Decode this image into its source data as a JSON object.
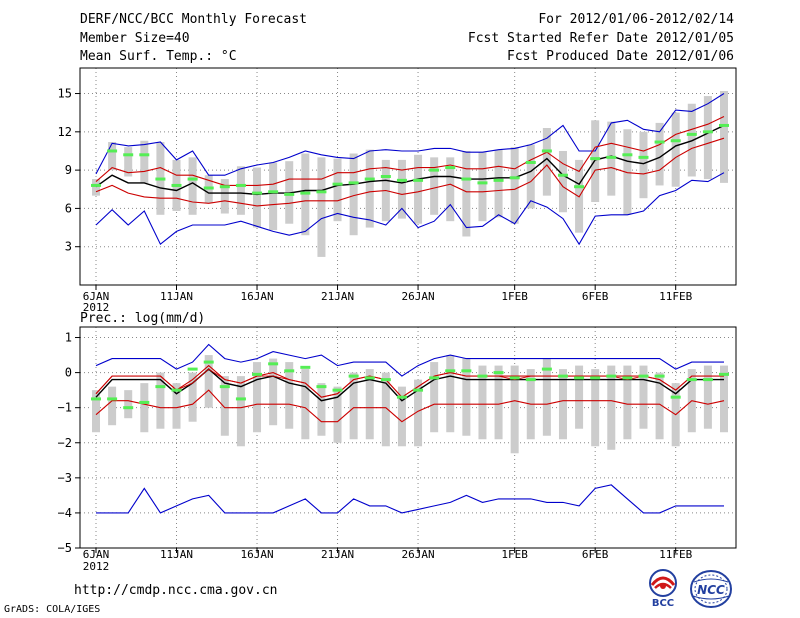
{
  "header": {
    "title": "DERF/NCC/BCC Monthly Forecast",
    "member_size": "Member Size=40",
    "variable": "Mean Surf. Temp.: °C",
    "period": "For 2012/01/06-2012/02/14",
    "fcst_started": "Fcst Started Refer Date 2012/01/05",
    "fcst_produced": "Fcst Produced Date 2012/01/06"
  },
  "footer": {
    "url": "http://cmdp.ncc.cma.gov.cn",
    "credit": "GrADS: COLA/IGES",
    "logo1": "BCC",
    "logo2": "NCC"
  },
  "colors": {
    "envelope": "#0000cc",
    "spread": "#cc0000",
    "mean": "#000000",
    "member": "#55ee55",
    "bar": "#cccccc",
    "grid": "#888888"
  },
  "chart_data": [
    {
      "name": "temperature",
      "type": "line",
      "title": "Mean Surf. Temp.: °C",
      "x_day_range": [
        1,
        40
      ],
      "ylim": [
        0,
        17
      ],
      "yticks": [
        3,
        6,
        9,
        12,
        15
      ],
      "ytick_labels": [
        "3",
        "6",
        "9",
        "12",
        "15"
      ],
      "xticks": [
        {
          "day": 1,
          "label": "6JAN",
          "sub": "2012"
        },
        {
          "day": 6,
          "label": "11JAN"
        },
        {
          "day": 11,
          "label": "16JAN"
        },
        {
          "day": 16,
          "label": "21JAN"
        },
        {
          "day": 21,
          "label": "26JAN"
        },
        {
          "day": 27,
          "label": "1FEB"
        },
        {
          "day": 32,
          "label": "6FEB"
        },
        {
          "day": 37,
          "label": "11FEB"
        }
      ],
      "grid": true,
      "series": [
        {
          "name": "max",
          "style": "envelope",
          "values": [
            8.7,
            11.1,
            10.9,
            11.0,
            11.2,
            9.8,
            10.5,
            8.6,
            8.6,
            9.1,
            9.4,
            9.6,
            10.0,
            10.5,
            10.2,
            10.0,
            9.9,
            10.5,
            10.6,
            10.5,
            10.5,
            10.7,
            10.7,
            10.4,
            10.4,
            10.6,
            10.7,
            11.0,
            11.5,
            12.5,
            10.5,
            10.5,
            12.7,
            12.9,
            12.2,
            12.0,
            13.7,
            13.6,
            14.2,
            15.0
          ]
        },
        {
          "name": "upper",
          "style": "spread",
          "values": [
            8.1,
            9.2,
            8.8,
            8.9,
            9.2,
            8.6,
            8.6,
            8.2,
            7.8,
            7.8,
            7.8,
            7.9,
            8.3,
            8.3,
            8.3,
            8.8,
            8.8,
            9.1,
            9.2,
            9.0,
            9.2,
            9.2,
            9.4,
            9.1,
            9.1,
            9.3,
            9.1,
            9.8,
            10.4,
            9.5,
            8.9,
            10.8,
            11.1,
            10.8,
            10.5,
            11.0,
            11.8,
            12.2,
            12.6,
            13.2
          ]
        },
        {
          "name": "mean",
          "style": "mean",
          "values": [
            7.7,
            8.6,
            8.0,
            8.0,
            7.6,
            7.4,
            8.0,
            7.2,
            7.2,
            7.2,
            7.1,
            7.2,
            7.2,
            7.4,
            7.4,
            7.8,
            7.9,
            8.1,
            8.2,
            8.0,
            8.3,
            8.5,
            8.5,
            8.3,
            8.3,
            8.4,
            8.4,
            8.9,
            9.9,
            8.6,
            7.9,
            9.8,
            10.1,
            9.7,
            9.5,
            10.0,
            10.9,
            11.3,
            11.9,
            12.5
          ]
        },
        {
          "name": "lower",
          "style": "spread",
          "values": [
            7.3,
            7.8,
            7.2,
            6.9,
            6.8,
            6.8,
            6.5,
            6.4,
            6.6,
            6.4,
            6.2,
            6.3,
            6.4,
            6.6,
            6.6,
            6.6,
            7.0,
            7.3,
            7.4,
            7.1,
            7.3,
            7.6,
            7.9,
            7.3,
            7.3,
            7.4,
            7.5,
            8.1,
            9.4,
            7.7,
            6.9,
            9.0,
            9.2,
            8.8,
            8.7,
            9.0,
            10.0,
            10.7,
            11.1,
            11.5
          ]
        },
        {
          "name": "min",
          "style": "envelope",
          "values": [
            4.7,
            5.9,
            4.7,
            5.8,
            3.2,
            4.2,
            4.7,
            4.7,
            4.7,
            5.0,
            4.6,
            4.2,
            3.9,
            4.2,
            5.2,
            5.6,
            5.3,
            5.1,
            4.7,
            6.0,
            4.5,
            5.0,
            6.3,
            4.5,
            4.6,
            5.5,
            4.8,
            6.6,
            6.1,
            5.2,
            3.2,
            5.4,
            5.5,
            5.5,
            5.8,
            7.0,
            7.4,
            8.2,
            8.1,
            8.8
          ]
        }
      ],
      "member_marks": [
        7.8,
        10.5,
        10.2,
        10.2,
        8.3,
        7.8,
        8.3,
        7.6,
        7.7,
        7.8,
        7.2,
        7.3,
        7.1,
        7.2,
        7.3,
        7.9,
        8.0,
        8.3,
        8.5,
        8.2,
        8.2,
        9.0,
        9.2,
        8.3,
        8.0,
        8.2,
        8.4,
        9.6,
        10.5,
        8.6,
        7.7,
        9.9,
        10.0,
        10.2,
        10.0,
        11.2,
        11.3,
        11.8,
        12.0,
        12.5
      ],
      "bar_ranges": [
        [
          7.0,
          8.3
        ],
        [
          9.0,
          11.2
        ],
        [
          8.5,
          10.8
        ],
        [
          8.0,
          11.3
        ],
        [
          5.5,
          11.2
        ],
        [
          5.8,
          9.8
        ],
        [
          5.5,
          10.0
        ],
        [
          6.4,
          8.6
        ],
        [
          5.6,
          8.3
        ],
        [
          5.5,
          9.3
        ],
        [
          4.5,
          9.2
        ],
        [
          4.3,
          9.6
        ],
        [
          4.8,
          9.7
        ],
        [
          3.9,
          10.3
        ],
        [
          2.2,
          10.0
        ],
        [
          5.0,
          9.9
        ],
        [
          3.9,
          10.3
        ],
        [
          4.5,
          10.6
        ],
        [
          5.0,
          9.8
        ],
        [
          5.2,
          9.8
        ],
        [
          4.8,
          10.2
        ],
        [
          5.5,
          10.0
        ],
        [
          5.0,
          10.0
        ],
        [
          3.8,
          10.5
        ],
        [
          5.0,
          10.4
        ],
        [
          5.3,
          10.6
        ],
        [
          4.8,
          10.8
        ],
        [
          6.0,
          11.0
        ],
        [
          7.0,
          12.3
        ],
        [
          5.7,
          10.5
        ],
        [
          4.1,
          9.8
        ],
        [
          6.5,
          12.9
        ],
        [
          7.0,
          12.8
        ],
        [
          5.5,
          12.2
        ],
        [
          6.8,
          12.0
        ],
        [
          7.8,
          12.7
        ],
        [
          7.7,
          13.5
        ],
        [
          8.5,
          14.2
        ],
        [
          8.3,
          14.8
        ],
        [
          8.0,
          15.2
        ]
      ]
    },
    {
      "name": "precipitation",
      "type": "line",
      "title": "Prec.: log(mm/d)",
      "x_day_range": [
        1,
        40
      ],
      "ylim": [
        -5,
        1.3
      ],
      "yticks": [
        -5,
        -4,
        -3,
        -2,
        -1,
        0,
        1
      ],
      "ytick_labels": [
        "−5",
        "−4",
        "−3",
        "−2",
        "−1",
        "0",
        "1"
      ],
      "xticks": [
        {
          "day": 1,
          "label": "6JAN",
          "sub": "2012"
        },
        {
          "day": 6,
          "label": "11JAN"
        },
        {
          "day": 11,
          "label": "16JAN"
        },
        {
          "day": 16,
          "label": "21JAN"
        },
        {
          "day": 21,
          "label": "26JAN"
        },
        {
          "day": 27,
          "label": "1FEB"
        },
        {
          "day": 32,
          "label": "6FEB"
        },
        {
          "day": 37,
          "label": "11FEB"
        }
      ],
      "grid": true,
      "series": [
        {
          "name": "max",
          "style": "envelope",
          "values": [
            0.2,
            0.4,
            0.4,
            0.4,
            0.4,
            0.1,
            0.3,
            0.8,
            0.4,
            0.3,
            0.4,
            0.6,
            0.5,
            0.4,
            0.5,
            0.2,
            0.3,
            0.3,
            0.3,
            -0.1,
            0.2,
            0.4,
            0.5,
            0.4,
            0.4,
            0.4,
            0.4,
            0.4,
            0.4,
            0.4,
            0.4,
            0.4,
            0.4,
            0.4,
            0.4,
            0.4,
            0.1,
            0.3,
            0.3,
            0.3
          ]
        },
        {
          "name": "upper",
          "style": "spread",
          "values": [
            -0.6,
            -0.1,
            -0.1,
            -0.1,
            -0.1,
            -0.5,
            -0.2,
            0.2,
            -0.2,
            -0.3,
            -0.1,
            0.0,
            -0.2,
            -0.3,
            -0.7,
            -0.6,
            -0.2,
            -0.1,
            -0.2,
            -0.7,
            -0.4,
            -0.1,
            0.0,
            -0.1,
            -0.1,
            -0.1,
            -0.1,
            -0.1,
            -0.1,
            -0.1,
            -0.1,
            -0.1,
            -0.1,
            -0.1,
            -0.1,
            -0.2,
            -0.5,
            -0.1,
            -0.1,
            -0.1
          ]
        },
        {
          "name": "mean",
          "style": "mean",
          "values": [
            -0.7,
            -0.2,
            -0.2,
            -0.2,
            -0.2,
            -0.6,
            -0.3,
            0.1,
            -0.3,
            -0.4,
            -0.2,
            -0.1,
            -0.3,
            -0.4,
            -0.8,
            -0.7,
            -0.3,
            -0.2,
            -0.3,
            -0.8,
            -0.5,
            -0.2,
            -0.1,
            -0.2,
            -0.2,
            -0.2,
            -0.2,
            -0.2,
            -0.2,
            -0.2,
            -0.2,
            -0.2,
            -0.2,
            -0.2,
            -0.2,
            -0.3,
            -0.6,
            -0.2,
            -0.2,
            -0.2
          ]
        },
        {
          "name": "lower",
          "style": "spread",
          "values": [
            -1.2,
            -0.8,
            -0.8,
            -0.9,
            -1.0,
            -1.0,
            -0.9,
            -0.5,
            -1.0,
            -1.0,
            -0.9,
            -0.9,
            -0.9,
            -1.0,
            -1.4,
            -1.4,
            -1.0,
            -1.0,
            -1.0,
            -1.4,
            -1.1,
            -0.9,
            -0.9,
            -0.9,
            -0.9,
            -0.9,
            -0.8,
            -0.9,
            -0.9,
            -0.8,
            -0.8,
            -0.8,
            -0.8,
            -0.9,
            -0.9,
            -0.9,
            -1.2,
            -0.8,
            -0.9,
            -0.8
          ]
        },
        {
          "name": "min",
          "style": "envelope",
          "values": [
            -4.0,
            -4.0,
            -4.0,
            -3.3,
            -4.0,
            -3.8,
            -3.6,
            -3.5,
            -4.0,
            -4.0,
            -4.0,
            -4.0,
            -3.8,
            -3.6,
            -4.0,
            -4.0,
            -3.6,
            -3.8,
            -3.8,
            -4.0,
            -3.9,
            -3.8,
            -3.7,
            -3.5,
            -3.7,
            -3.6,
            -3.6,
            -3.6,
            -3.7,
            -3.7,
            -3.8,
            -3.3,
            -3.2,
            -3.6,
            -4.0,
            -4.0,
            -3.8,
            -3.8,
            -3.8,
            -3.8
          ]
        },
        {
          "name": "secondary",
          "style": "mean_thin",
          "values": [
            -0.6,
            -0.1,
            -0.1,
            -0.1,
            -0.1,
            -0.5,
            -0.3,
            0.1,
            -0.2,
            -0.3,
            -0.1,
            -0.1,
            -0.2,
            -0.3,
            -0.7,
            -0.6,
            -0.2,
            -0.1,
            -0.2,
            -0.7,
            -0.4,
            -0.1,
            0.0,
            -0.1,
            -0.1,
            -0.1,
            -0.2,
            -0.1,
            -0.1,
            -0.1,
            -0.1,
            -0.1,
            -0.1,
            -0.2,
            -0.1,
            -0.2,
            -0.5,
            -0.1,
            -0.1,
            -0.1
          ]
        }
      ],
      "member_marks": [
        -0.75,
        -0.75,
        -1.0,
        -0.85,
        -0.4,
        -0.5,
        0.1,
        0.3,
        -0.4,
        -0.75,
        -0.05,
        0.25,
        0.05,
        0.15,
        -0.4,
        -0.5,
        -0.1,
        -0.15,
        -0.2,
        -0.7,
        -0.5,
        -0.15,
        0.05,
        0.05,
        -0.1,
        0.0,
        -0.15,
        -0.2,
        0.1,
        -0.1,
        -0.15,
        -0.15,
        -0.1,
        -0.15,
        -0.1,
        -0.1,
        -0.7,
        -0.2,
        -0.2,
        -0.05
      ],
      "bar_ranges": [
        [
          -1.7,
          -0.5
        ],
        [
          -1.5,
          -0.4
        ],
        [
          -1.3,
          -0.5
        ],
        [
          -1.7,
          -0.3
        ],
        [
          -1.6,
          0.0
        ],
        [
          -1.6,
          -0.3
        ],
        [
          -1.4,
          0.0
        ],
        [
          -1.0,
          0.5
        ],
        [
          -1.8,
          -0.1
        ],
        [
          -2.1,
          -0.1
        ],
        [
          -1.7,
          0.3
        ],
        [
          -1.5,
          0.4
        ],
        [
          -1.6,
          0.3
        ],
        [
          -1.9,
          0.1
        ],
        [
          -1.8,
          -0.3
        ],
        [
          -2.0,
          -0.4
        ],
        [
          -1.9,
          0.0
        ],
        [
          -1.9,
          0.1
        ],
        [
          -2.1,
          0.0
        ],
        [
          -2.1,
          -0.4
        ],
        [
          -2.1,
          -0.2
        ],
        [
          -1.7,
          0.3
        ],
        [
          -1.7,
          0.5
        ],
        [
          -1.8,
          0.4
        ],
        [
          -1.9,
          0.2
        ],
        [
          -1.9,
          0.2
        ],
        [
          -2.3,
          0.2
        ],
        [
          -1.9,
          0.1
        ],
        [
          -1.8,
          0.4
        ],
        [
          -1.9,
          0.1
        ],
        [
          -1.6,
          0.2
        ],
        [
          -2.1,
          0.1
        ],
        [
          -2.2,
          0.2
        ],
        [
          -1.9,
          0.2
        ],
        [
          -1.6,
          0.2
        ],
        [
          -1.9,
          0.0
        ],
        [
          -2.1,
          -0.3
        ],
        [
          -1.7,
          0.1
        ],
        [
          -1.6,
          0.2
        ],
        [
          -1.7,
          0.2
        ]
      ]
    }
  ]
}
